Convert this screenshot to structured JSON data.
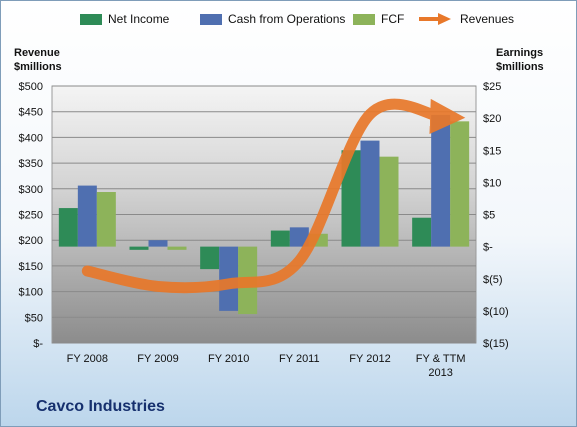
{
  "company": "Cavco Industries",
  "colors": {
    "net_income": "#2e8b57",
    "cash_from_operations": "#4f6fb0",
    "fcf": "#8db35a",
    "revenues": "#e8782a"
  },
  "chart_data": {
    "type": "bar",
    "categories": [
      "FY 2008",
      "FY 2009",
      "FY 2010",
      "FY 2011",
      "FY 2012",
      "FY & TTM 2013"
    ],
    "series": [
      {
        "name": "Net Income",
        "axis": "right",
        "values": [
          6.0,
          -0.5,
          -3.5,
          2.5,
          15.0,
          4.5
        ]
      },
      {
        "name": "Cash from Operations",
        "axis": "right",
        "values": [
          9.5,
          1.0,
          -10.0,
          3.0,
          16.5,
          20.5
        ]
      },
      {
        "name": "FCF",
        "axis": "right",
        "values": [
          8.5,
          -0.5,
          -10.5,
          2.0,
          14.0,
          19.5
        ]
      }
    ],
    "line_series": {
      "name": "Revenues",
      "axis": "left",
      "style": "arrow",
      "values": [
        140,
        110,
        115,
        160,
        445,
        440
      ]
    },
    "left_axis": {
      "title": "Revenue\n$millions",
      "ylim": [
        0,
        500
      ],
      "ticks": [
        "$-",
        "$50",
        "$100",
        "$150",
        "$200",
        "$250",
        "$300",
        "$350",
        "$400",
        "$450",
        "$500"
      ]
    },
    "right_axis": {
      "title": "Earnings\n$millions",
      "ylim": [
        -15,
        25
      ],
      "ticks": [
        "$(15)",
        "$(10)",
        "$(5)",
        "$-",
        "$5",
        "$10",
        "$15",
        "$20",
        "$25"
      ]
    },
    "x_tick_labels": [
      "FY 2008",
      "FY 2009",
      "FY 2010",
      "FY 2011",
      "FY 2012",
      "FY & TTM\n2013"
    ],
    "grid": true,
    "legend_position": "top"
  }
}
